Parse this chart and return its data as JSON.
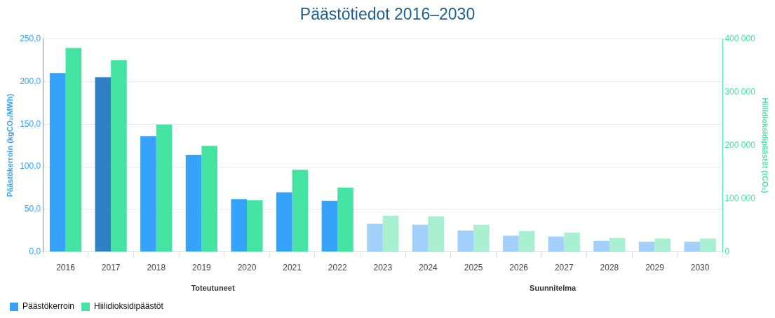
{
  "chart_data": {
    "type": "bar",
    "title": "Päästötiedot 2016–2030",
    "categories": [
      "2016",
      "2017",
      "2018",
      "2019",
      "2020",
      "2021",
      "2022",
      "2023",
      "2024",
      "2025",
      "2026",
      "2027",
      "2028",
      "2029",
      "2030"
    ],
    "series": [
      {
        "name": "Päästökerroin",
        "color": "#36a2f9",
        "colors": [
          "#36a2f9",
          "#2f80c5",
          "#36a2f9",
          "#36a2f9",
          "#36a2f9",
          "#36a2f9",
          "#36a2f9",
          "#a3cffb",
          "#a3cffb",
          "#a3cffb",
          "#a3cffb",
          "#a3cffb",
          "#a3cffb",
          "#a3cffb",
          "#a3cffb"
        ],
        "values": [
          210,
          205,
          136,
          114,
          62,
          70,
          60,
          33,
          32,
          25,
          19,
          18,
          13,
          12,
          12
        ]
      },
      {
        "name": "Hiilidioksidipäästöt",
        "color": "#45e4a3",
        "axis": "y2",
        "colors": [
          "#45e4a3",
          "#45e4a3",
          "#45e4a3",
          "#45e4a3",
          "#45e4a3",
          "#45e4a3",
          "#45e4a3",
          "#a9f0d3",
          "#a9f0d3",
          "#a9f0d3",
          "#a9f0d3",
          "#a9f0d3",
          "#a9f0d3",
          "#a9f0d3",
          "#a9f0d3"
        ],
        "values": [
          383000,
          360000,
          239000,
          199000,
          97000,
          154000,
          121000,
          68000,
          67000,
          51000,
          39000,
          36000,
          26000,
          25000,
          25000
        ]
      }
    ],
    "ylabel": "Päästökerroin (kgCO₂/MWh)",
    "y2label": "Hiilidioksidipäästöt (tCO₂)",
    "ylim": [
      0,
      250
    ],
    "yticks": [
      {
        "value": 0,
        "label": "0,0"
      },
      {
        "value": 50,
        "label": "50,0"
      },
      {
        "value": 100,
        "label": "100,0"
      },
      {
        "value": 150,
        "label": "150,0"
      },
      {
        "value": 200,
        "label": "200,0"
      },
      {
        "value": 250,
        "label": "250,0"
      }
    ],
    "y2lim": [
      0,
      400000
    ],
    "y2ticks": [
      {
        "value": 0,
        "label": "0"
      },
      {
        "value": 100000,
        "label": "100 000"
      },
      {
        "value": 200000,
        "label": "200 000"
      },
      {
        "value": 300000,
        "label": "300 000"
      },
      {
        "value": 400000,
        "label": "400 000"
      }
    ],
    "annotations": [
      "Toteutuneet",
      "Suunnitelma"
    ],
    "grid": "y",
    "legend": "bottom left"
  }
}
